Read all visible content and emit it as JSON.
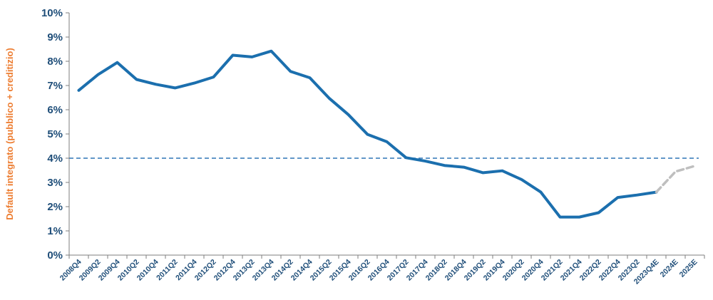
{
  "chart_data": {
    "type": "line",
    "ylabel": "Default integrato (pubblico + creditizio)",
    "xlabel": "",
    "title": "",
    "ylim": [
      0,
      10
    ],
    "yticks": [
      "0%",
      "1%",
      "2%",
      "3%",
      "4%",
      "5%",
      "6%",
      "7%",
      "8%",
      "9%",
      "10%"
    ],
    "grid": false,
    "legend": "none",
    "categories": [
      "2008Q4",
      "2009Q2",
      "2009Q4",
      "2010Q2",
      "2010Q4",
      "2011Q2",
      "2011Q4",
      "2012Q2",
      "2012Q4",
      "2013Q2",
      "2013Q4",
      "2014Q2",
      "2014Q4",
      "2015Q2",
      "2015Q4",
      "2016Q2",
      "2016Q4",
      "2017Q2",
      "2017Q4",
      "2018Q2",
      "2018Q4",
      "2019Q2",
      "2019Q4",
      "2020Q2",
      "2020Q4",
      "2021Q2",
      "2021Q4",
      "2022Q2",
      "2022Q4",
      "2023Q2",
      "2023Q4E",
      "2024E",
      "2025E"
    ],
    "series": [
      {
        "role": "actual",
        "color": "#1b6fae",
        "line": "solid",
        "values": [
          6.8,
          7.45,
          7.95,
          7.25,
          7.05,
          6.9,
          7.1,
          7.35,
          8.25,
          8.18,
          8.42,
          7.58,
          7.32,
          6.48,
          5.8,
          4.98,
          4.68,
          4.02,
          3.88,
          3.7,
          3.63,
          3.4,
          3.48,
          3.12,
          2.6,
          1.57,
          1.57,
          1.75,
          2.38,
          2.48,
          2.6,
          null,
          null
        ]
      },
      {
        "role": "forecast",
        "color": "#bfbfbf",
        "line": "dashed",
        "values": [
          null,
          null,
          null,
          null,
          null,
          null,
          null,
          null,
          null,
          null,
          null,
          null,
          null,
          null,
          null,
          null,
          null,
          null,
          null,
          null,
          null,
          null,
          null,
          null,
          null,
          null,
          null,
          null,
          null,
          null,
          2.6,
          3.45,
          3.68
        ]
      }
    ],
    "reference_line": {
      "value": 4,
      "color": "#2e75b6",
      "style": "dashed"
    },
    "axis_color": "#7f7f7f"
  }
}
